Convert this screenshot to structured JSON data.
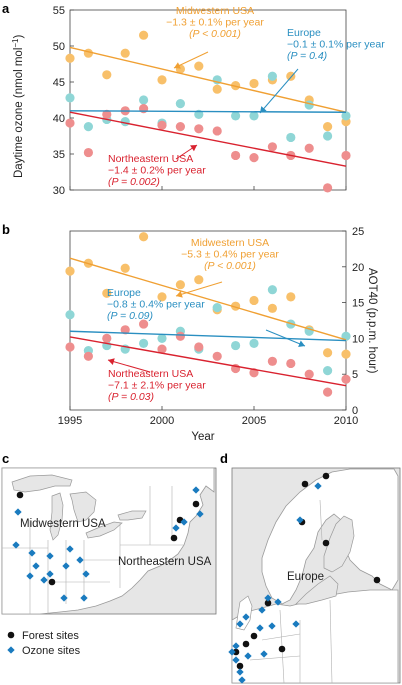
{
  "colors": {
    "midwest": "#f0a033",
    "midwest_point": "#f8c06a",
    "europe": "#2a8fc1",
    "europe_point": "#8fd6d6",
    "northeast": "#d9222f",
    "northeast_point": "#ee8e8e",
    "land": "#ffffff",
    "sea": "#e6e6e6",
    "forest_marker": "#111111",
    "ozone_marker": "#1a7bbf"
  },
  "chart_data": [
    {
      "panel": "a",
      "type": "scatter",
      "ylabel_parts": [
        "Daytime ozone (nmol mol",
        "−1",
        ")"
      ],
      "xlim": [
        1995,
        2010
      ],
      "ylim": [
        30,
        55
      ],
      "yticks": [
        30,
        35,
        40,
        45,
        50,
        55
      ],
      "xticks": [
        1995,
        2000,
        2005,
        2010
      ],
      "series": [
        {
          "key": "midwest",
          "x": [
            1995,
            1996,
            1997,
            1998,
            1999,
            2000,
            2001,
            2002,
            2003,
            2004,
            2005,
            2006,
            2007,
            2008,
            2009,
            2010
          ],
          "y": [
            48.3,
            49.0,
            46.0,
            49.0,
            51.5,
            45.3,
            46.8,
            47.2,
            44.0,
            44.5,
            44.8,
            45.3,
            45.8,
            42.5,
            38.8,
            39.5
          ],
          "fit": [
            49.8,
            40.8
          ],
          "annotation": [
            "Midwestern USA",
            "−1.3 ± 0.1% per year",
            "(P < 0.001)"
          ]
        },
        {
          "key": "europe",
          "x": [
            1995,
            1996,
            1997,
            1998,
            1999,
            2000,
            2001,
            2002,
            2003,
            2004,
            2005,
            2006,
            2007,
            2008,
            2009,
            2010
          ],
          "y": [
            42.8,
            38.8,
            39.8,
            39.5,
            42.5,
            39.3,
            42.0,
            40.5,
            45.3,
            40.3,
            40.3,
            45.8,
            37.3,
            41.8,
            37.5,
            40.3
          ],
          "fit": [
            41.0,
            40.8
          ],
          "annotation": [
            "Europe",
            "−0.1 ± 0.1% per year",
            "(P = 0.4)"
          ]
        },
        {
          "key": "northeast",
          "x": [
            1995,
            1996,
            1997,
            1998,
            1999,
            2000,
            2001,
            2002,
            2003,
            2004,
            2005,
            2006,
            2007,
            2008,
            2009,
            2010
          ],
          "y": [
            39.3,
            35.2,
            40.5,
            41.0,
            41.3,
            39.0,
            38.8,
            38.5,
            38.2,
            34.8,
            34.5,
            36.0,
            34.8,
            35.8,
            30.3,
            34.8
          ],
          "fit": [
            40.8,
            33.3
          ],
          "annotation": [
            "Northeastern USA",
            "−1.4 ± 0.2% per year",
            "(P = 0.002)"
          ]
        }
      ]
    },
    {
      "panel": "b",
      "type": "scatter",
      "ylabel": "AOT40 (p.p.m. hour)",
      "xlabel": "Year",
      "xlim": [
        1995,
        2010
      ],
      "ylim": [
        0,
        25
      ],
      "yticks": [
        0,
        5,
        10,
        15,
        20,
        25
      ],
      "xticks": [
        1995,
        2000,
        2005,
        2010
      ],
      "series": [
        {
          "key": "midwest",
          "x": [
            1995,
            1996,
            1997,
            1998,
            1999,
            2000,
            2001,
            2002,
            2003,
            2004,
            2005,
            2006,
            2007,
            2008,
            2009,
            2010
          ],
          "y": [
            19.4,
            20.5,
            16.3,
            19.8,
            24.2,
            15.8,
            17.5,
            18.2,
            14.0,
            14.5,
            15.3,
            14.2,
            15.8,
            11.2,
            8.0,
            7.8
          ],
          "fit": [
            21.2,
            9.8
          ],
          "annotation": [
            "Midwestern USA",
            "−5.3 ± 0.4% per year",
            "(P < 0.001)"
          ]
        },
        {
          "key": "europe",
          "x": [
            1995,
            1996,
            1997,
            1998,
            1999,
            2000,
            2001,
            2002,
            2003,
            2004,
            2005,
            2006,
            2007,
            2008,
            2009,
            2010
          ],
          "y": [
            13.3,
            8.3,
            9.0,
            8.5,
            9.3,
            10.0,
            11.0,
            8.5,
            14.3,
            9.0,
            9.3,
            16.8,
            12.0,
            11.0,
            5.5,
            10.3
          ],
          "fit": [
            11.0,
            9.7
          ],
          "annotation": [
            "Europe",
            "−0.8 ± 0.4% per year",
            "(P = 0.09)"
          ]
        },
        {
          "key": "northeast",
          "x": [
            1995,
            1996,
            1997,
            1998,
            1999,
            2000,
            2001,
            2002,
            2003,
            2004,
            2005,
            2006,
            2007,
            2008,
            2009,
            2010
          ],
          "y": [
            8.8,
            7.5,
            10.0,
            11.2,
            12.0,
            8.5,
            10.3,
            8.8,
            7.5,
            5.8,
            5.2,
            6.8,
            6.5,
            5.0,
            2.5,
            4.3
          ],
          "fit": [
            10.2,
            3.4
          ],
          "annotation": [
            "Northeastern USA",
            "−7.1 ± 2.1% per year",
            "(P = 0.03)"
          ]
        }
      ]
    }
  ],
  "maps": {
    "c": {
      "panel": "c",
      "labels": [
        "Midwestern USA",
        "Northeastern USA"
      ]
    },
    "d": {
      "panel": "d",
      "labels": [
        "Europe"
      ]
    }
  },
  "legend": {
    "forest": "Forest sites",
    "ozone": "Ozone sites"
  }
}
